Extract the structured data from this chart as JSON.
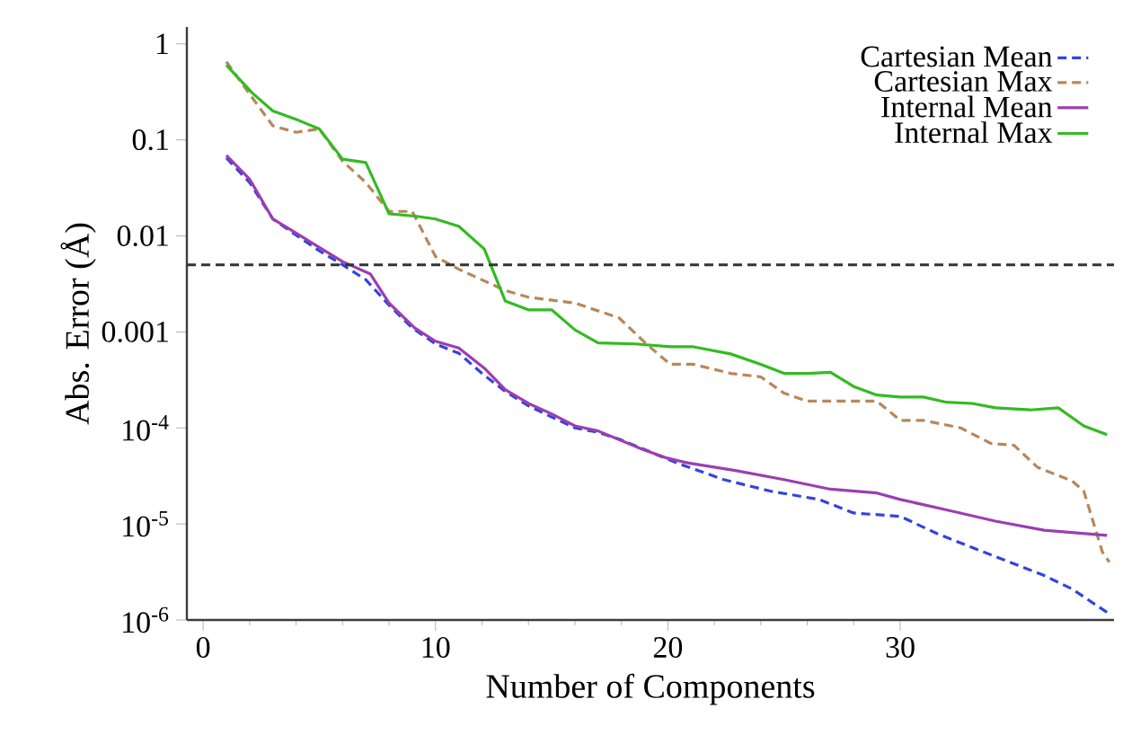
{
  "chart_data": {
    "type": "line",
    "xlabel": "Number of Components",
    "ylabel": "Abs. Error (Å)",
    "log": "y",
    "xlim": [
      -0.7,
      39.2
    ],
    "xticks": [
      0,
      10,
      20,
      30
    ],
    "ylim": [
      1e-06,
      1.5
    ],
    "yticks": [
      1,
      0.1,
      0.01,
      0.001,
      {
        "value": 0.0001,
        "label": "10$^{-4}$"
      },
      {
        "value": 1e-05,
        "label": "10$^{-5}$"
      },
      {
        "value": 1e-06,
        "label": "10$^{-6}$"
      }
    ],
    "legend": "top right",
    "grid": false,
    "ref_lines": [
      {
        "axis": "y",
        "value": 0.005,
        "color": "#333333",
        "line_style": "dashed"
      }
    ],
    "series": [
      {
        "name": "Cartesian Mean",
        "color": "#3344dd",
        "line_style": "dashed",
        "x": [
          1,
          2,
          3,
          4,
          5,
          6,
          7,
          8,
          9,
          10,
          11,
          12,
          13,
          14,
          15,
          16,
          17,
          18,
          20.4,
          22.4,
          24.4,
          26.5,
          28,
          30,
          31.6,
          33.6,
          36.2,
          37.4,
          38.9
        ],
        "values": [
          0.065,
          0.036,
          0.015,
          0.0102,
          0.007,
          0.005,
          0.0035,
          0.0019,
          0.0011,
          0.00075,
          0.0006,
          0.00037,
          0.00024,
          0.00017,
          0.00013,
          0.0001,
          9e-05,
          7.5e-05,
          4.3e-05,
          2.9e-05,
          2.2e-05,
          1.8e-05,
          1.3e-05,
          1.2e-05,
          7.9e-06,
          5.1e-06,
          2.9e-06,
          2.1e-06,
          1.2e-06
        ]
      },
      {
        "name": "Cartesian Max",
        "color": "#b8875a",
        "line_style": "dashed",
        "x": [
          1,
          2,
          3,
          4,
          5,
          6,
          7,
          8,
          9,
          10,
          11,
          12.1,
          13,
          14,
          16,
          17.9,
          19.1,
          20.1,
          21.1,
          22.7,
          24,
          25,
          26,
          28,
          29,
          30,
          31,
          32.6,
          33.9,
          34.9,
          35.9,
          37.4,
          37.9,
          38.7,
          39
        ],
        "values": [
          0.65,
          0.3,
          0.14,
          0.12,
          0.13,
          0.06,
          0.036,
          0.018,
          0.018,
          0.0061,
          0.0045,
          0.0034,
          0.0027,
          0.0023,
          0.002,
          0.0014,
          0.00074,
          0.00046,
          0.00046,
          0.00037,
          0.00034,
          0.00023,
          0.00019,
          0.00019,
          0.00019,
          0.00012,
          0.00012,
          0.0001,
          6.9e-05,
          6.6e-05,
          3.9e-05,
          2.8e-05,
          2.2e-05,
          5.1e-06,
          4e-06
        ]
      },
      {
        "name": "Internal Mean",
        "color": "#9b3fb0",
        "line_style": "solid",
        "x": [
          1,
          2,
          3,
          4,
          5,
          6,
          7.2,
          8,
          9.1,
          10,
          11,
          12.1,
          13,
          14,
          15,
          16,
          17,
          18.9,
          19.9,
          20.9,
          22.9,
          25,
          27,
          29,
          30,
          32,
          34.1,
          36.2,
          38.9
        ],
        "values": [
          0.069,
          0.039,
          0.015,
          0.0107,
          0.0076,
          0.0054,
          0.004,
          0.002,
          0.0011,
          0.0008,
          0.00068,
          0.00042,
          0.00025,
          0.00018,
          0.00014,
          0.000105,
          9.3e-05,
          6e-05,
          4.9e-05,
          4.3e-05,
          3.6e-05,
          2.9e-05,
          2.3e-05,
          2.1e-05,
          1.8e-05,
          1.4e-05,
          1.07e-05,
          8.6e-06,
          7.6e-06
        ]
      },
      {
        "name": "Internal Max",
        "color": "#33bb22",
        "line_style": "solid",
        "x": [
          1,
          2.1,
          3,
          4.1,
          5,
          6,
          7,
          8,
          9.2,
          10,
          11,
          12.1,
          13,
          14,
          15,
          16,
          17,
          18.6,
          20.1,
          21.1,
          22.7,
          24,
          25,
          26,
          27,
          28,
          29,
          30,
          31,
          32,
          33.1,
          34.1,
          35.6,
          36.8,
          37.9,
          38.9
        ],
        "values": [
          0.6,
          0.31,
          0.2,
          0.16,
          0.13,
          0.063,
          0.058,
          0.017,
          0.016,
          0.015,
          0.0126,
          0.0073,
          0.0021,
          0.0017,
          0.0017,
          0.00105,
          0.00077,
          0.00075,
          0.0007,
          0.0007,
          0.00059,
          0.00046,
          0.00037,
          0.00037,
          0.00038,
          0.00027,
          0.00022,
          0.00021,
          0.00021,
          0.000185,
          0.00018,
          0.000162,
          0.000154,
          0.000162,
          0.000105,
          8.5e-05
        ]
      }
    ]
  }
}
